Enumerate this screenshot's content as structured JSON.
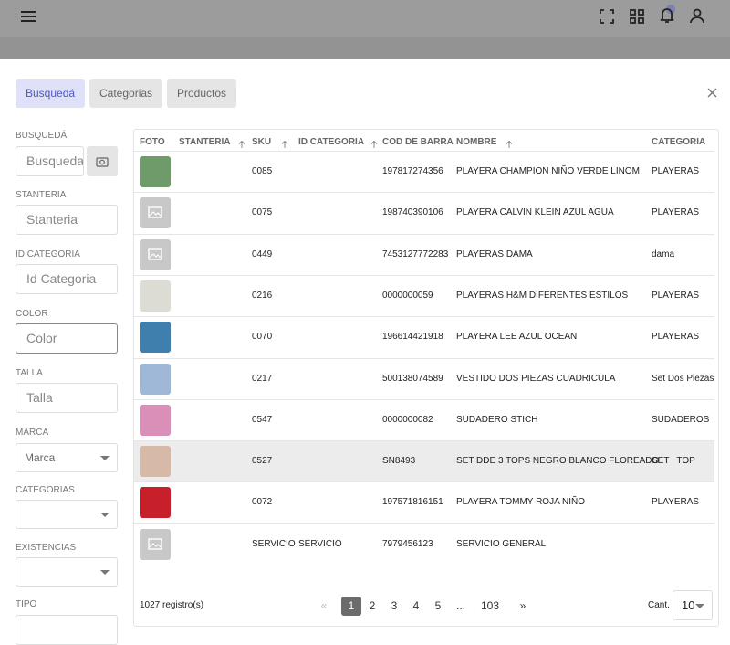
{
  "tabs": [
    "Busquedá",
    "Categorias",
    "Productos"
  ],
  "filters": [
    {
      "label": "BUSQUEDÁ",
      "placeholder": "Busqueda"
    },
    {
      "label": "STANTERIA",
      "placeholder": "Stanteria"
    },
    {
      "label": "ID CATEGORIA",
      "placeholder": "Id Categoria"
    },
    {
      "label": "COLOR",
      "placeholder": "Color"
    },
    {
      "label": "TALLA",
      "placeholder": "Talla"
    },
    {
      "label": "MARCA",
      "placeholder": "Marca"
    },
    {
      "label": "CATEGORIAS"
    },
    {
      "label": "EXISTENCIAS"
    },
    {
      "label": "TIPO"
    }
  ],
  "table": {
    "columns": [
      "FOTO",
      "STANTERIA",
      "SKU",
      "ID CATEGORIA",
      "COD DE BARRA",
      "NOMBRE",
      "CATEGORIA"
    ],
    "rows": [
      {
        "photo": "#6f9a6a",
        "sku": "0085",
        "barcode": "197817274356",
        "name": "PLAYERA CHAMPION NIÑO VERDE LINOM",
        "categoria": "PLAYERAS"
      },
      {
        "sku": "0075",
        "barcode": "198740390106",
        "name": "PLAYERA CALVIN KLEIN AZUL AGUA",
        "categoria": "PLAYERAS"
      },
      {
        "sku": "0449",
        "barcode": "7453127772283",
        "name": "PLAYERAS DAMA",
        "categoria": "dama"
      },
      {
        "photo": "#dcdcd4",
        "sku": "0216",
        "barcode": "0000000059",
        "name": "PLAYERAS H&M DIFERENTES ESTILOS",
        "categoria": "PLAYERAS"
      },
      {
        "photo": "#3f7fae",
        "sku": "0070",
        "barcode": "196614421918",
        "name": "PLAYERA LEE AZUL OCEAN",
        "categoria": "PLAYERAS"
      },
      {
        "photo": "#9fb8d8",
        "sku": "0217",
        "barcode": "500138074589",
        "name": "VESTIDO DOS PIEZAS CUADRICULA",
        "categoria": "Set Dos Piezas"
      },
      {
        "photo": "#d98fb8",
        "sku": "0547",
        "barcode": "0000000082",
        "name": "SUDADERO STICH",
        "categoria": "SUDADEROS"
      },
      {
        "photo": "#d7b9a8",
        "sku": "0527",
        "barcode": "SN8493",
        "name": "SET DDE 3 TOPS NEGRO BLANCO FLOREADO",
        "categoria": "SET   TOP"
      },
      {
        "photo": "#c8202a",
        "sku": "0072",
        "barcode": "197571816151",
        "name": "PLAYERA TOMMY ROJA NIÑO",
        "categoria": "PLAYERAS"
      },
      {
        "sku": "SERVICIO",
        "id_categoria": "SERVICIO",
        "barcode": "7979456123",
        "name": "SERVICIO GENERAL"
      }
    ]
  },
  "footer": {
    "count": "1027 registro(s)",
    "pages": [
      "«",
      "1",
      "2",
      "3",
      "4",
      "5",
      "...",
      "103",
      "»"
    ],
    "page_size_label": "Cant.",
    "page_size": "10"
  }
}
